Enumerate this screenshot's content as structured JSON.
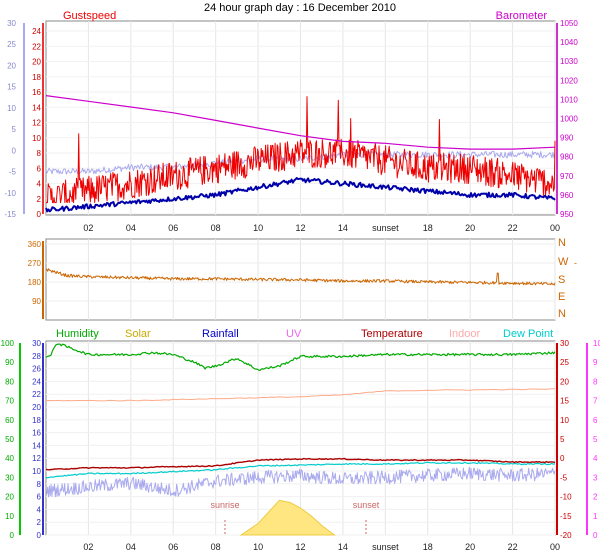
{
  "title": "24 hour graph day : 16 December 2010",
  "x_ticks": [
    "02",
    "04",
    "06",
    "08",
    "10",
    "12",
    "14",
    "sunset",
    "18",
    "20",
    "22",
    "00"
  ],
  "colors": {
    "gust": "#ee0000",
    "baro": "#cc00cc",
    "temp_axis": "#cc0000",
    "hum_axis": "#00bb00",
    "rain_axis": "#3333cc",
    "uv_axis": "#ff33ff",
    "wind": "#cc6600"
  },
  "chart_data": [
    {
      "type": "line",
      "name": "top-panel",
      "legend": {
        "left": "Gustspeed",
        "right": "Barometer"
      },
      "y_left_outer": {
        "ticks": [
          -15,
          -10,
          -5,
          0,
          5,
          10,
          15,
          20,
          25,
          30
        ]
      },
      "y_left_inner": {
        "ticks": [
          0,
          2,
          4,
          6,
          8,
          10,
          12,
          14,
          16,
          18,
          20,
          22,
          24
        ]
      },
      "y_right": {
        "ticks": [
          950,
          960,
          970,
          980,
          990,
          1000,
          1010,
          1020,
          1030,
          1040,
          1050
        ]
      },
      "series": [
        {
          "key": "barometer",
          "x": [
            0,
            2,
            4,
            6,
            8,
            10,
            12,
            14,
            16,
            18,
            20,
            22,
            24
          ],
          "values": [
            1012,
            1009,
            1006,
            1003,
            999,
            995,
            991,
            988,
            987,
            985,
            984,
            984,
            985
          ]
        },
        {
          "key": "gust",
          "x": [
            0,
            2,
            4,
            6,
            8,
            10,
            12,
            14,
            16,
            18,
            20,
            22,
            24
          ],
          "values": [
            2,
            3,
            4,
            5,
            6,
            7,
            8,
            8,
            7,
            6,
            6,
            5,
            4
          ]
        },
        {
          "key": "wind",
          "x": [
            0,
            2,
            4,
            6,
            8,
            10,
            12,
            14,
            16,
            18,
            20,
            22,
            24
          ],
          "values": [
            0.5,
            1,
            1.5,
            2,
            2.5,
            3.5,
            4.5,
            4,
            3.5,
            3,
            2.5,
            2.5,
            2
          ]
        },
        {
          "key": "dewpoint",
          "x": [
            0,
            2,
            4,
            6,
            8,
            10,
            12,
            14,
            16,
            18,
            20,
            22,
            24
          ],
          "values": [
            -5,
            -5,
            -4,
            -4,
            -3,
            -2,
            -2,
            -1,
            -1,
            -1,
            -1,
            -1,
            -1
          ]
        }
      ]
    },
    {
      "type": "line",
      "name": "wind-direction",
      "y_left": {
        "ticks": [
          90,
          180,
          270,
          360
        ]
      },
      "y_right": {
        "ticks": [
          "N",
          "W",
          "S",
          "E",
          "N"
        ]
      },
      "series": [
        {
          "key": "direction",
          "x": [
            0,
            1,
            2,
            4,
            6,
            8,
            10,
            12,
            14,
            16,
            18,
            20,
            22,
            24
          ],
          "values": [
            240,
            210,
            205,
            200,
            195,
            195,
            192,
            190,
            185,
            185,
            180,
            178,
            175,
            170
          ]
        }
      ]
    },
    {
      "type": "line",
      "name": "bottom-panel",
      "legend": [
        "Humidity",
        "Solar",
        "Rainfall",
        "UV",
        "Temperature",
        "Indoor",
        "Dew Point"
      ],
      "annotations": [
        "sunrise",
        "sunset"
      ],
      "y_humidity": {
        "ticks": [
          0,
          10,
          20,
          30,
          40,
          50,
          60,
          70,
          80,
          90,
          100
        ]
      },
      "y_rain": {
        "ticks": [
          0,
          2,
          4,
          6,
          8,
          10,
          12,
          14,
          16,
          18,
          20,
          22,
          24,
          26,
          28,
          30
        ]
      },
      "y_temp": {
        "ticks": [
          -20,
          -15,
          -10,
          -5,
          0,
          5,
          10,
          15,
          20,
          25,
          30
        ]
      },
      "y_uv": {
        "ticks": [
          0,
          1,
          2,
          3,
          4,
          5,
          6,
          7,
          8,
          9,
          10
        ]
      },
      "series": [
        {
          "key": "humidity",
          "x": [
            0,
            0.2,
            0.5,
            2,
            4,
            5,
            6,
            7,
            7.5,
            8,
            9,
            10,
            11,
            12,
            14,
            16,
            18,
            20,
            22,
            24
          ],
          "values": [
            93,
            93,
            100,
            94,
            94,
            95,
            94,
            90,
            87,
            88,
            92,
            86,
            88,
            93,
            93,
            94,
            94,
            94,
            94,
            95
          ]
        },
        {
          "key": "indoor",
          "x": [
            0,
            4,
            8,
            12,
            14,
            16,
            18,
            20,
            22,
            24
          ],
          "values": [
            15,
            15,
            15.5,
            16,
            16.5,
            17.5,
            17.7,
            17.8,
            17.9,
            18
          ]
        },
        {
          "key": "temperature",
          "x": [
            0,
            2,
            4,
            6,
            8,
            10,
            12,
            14,
            16,
            18,
            20,
            22,
            24
          ],
          "values": [
            -3,
            -2.5,
            -2.5,
            -2.2,
            -2,
            -0.5,
            -0.2,
            -0.2,
            -0.5,
            -0.5,
            -0.5,
            -1,
            -1
          ]
        },
        {
          "key": "dewpoint",
          "x": [
            0,
            2,
            4,
            6,
            8,
            10,
            12,
            14,
            16,
            18,
            20,
            22,
            24
          ],
          "values": [
            -5,
            -4,
            -4,
            -3.5,
            -3,
            -2,
            -1.8,
            -1.5,
            -1.5,
            -1.2,
            -1.2,
            -1.5,
            -1.5
          ]
        },
        {
          "key": "uv",
          "x": [
            0,
            2,
            4,
            6,
            8,
            10,
            12,
            14,
            16,
            18,
            20,
            22,
            24
          ],
          "values": [
            2.3,
            2.5,
            2.7,
            2.3,
            2.8,
            3.0,
            3.1,
            2.9,
            3.0,
            3.1,
            3.2,
            3.1,
            3.2
          ]
        },
        {
          "key": "solar",
          "x": [
            9.2,
            10,
            10.5,
            11,
            11.5,
            12,
            12.5,
            13,
            13.6
          ],
          "values": [
            0,
            0.6,
            1.2,
            1.8,
            1.7,
            1.4,
            1.0,
            0.5,
            0
          ]
        }
      ]
    }
  ]
}
